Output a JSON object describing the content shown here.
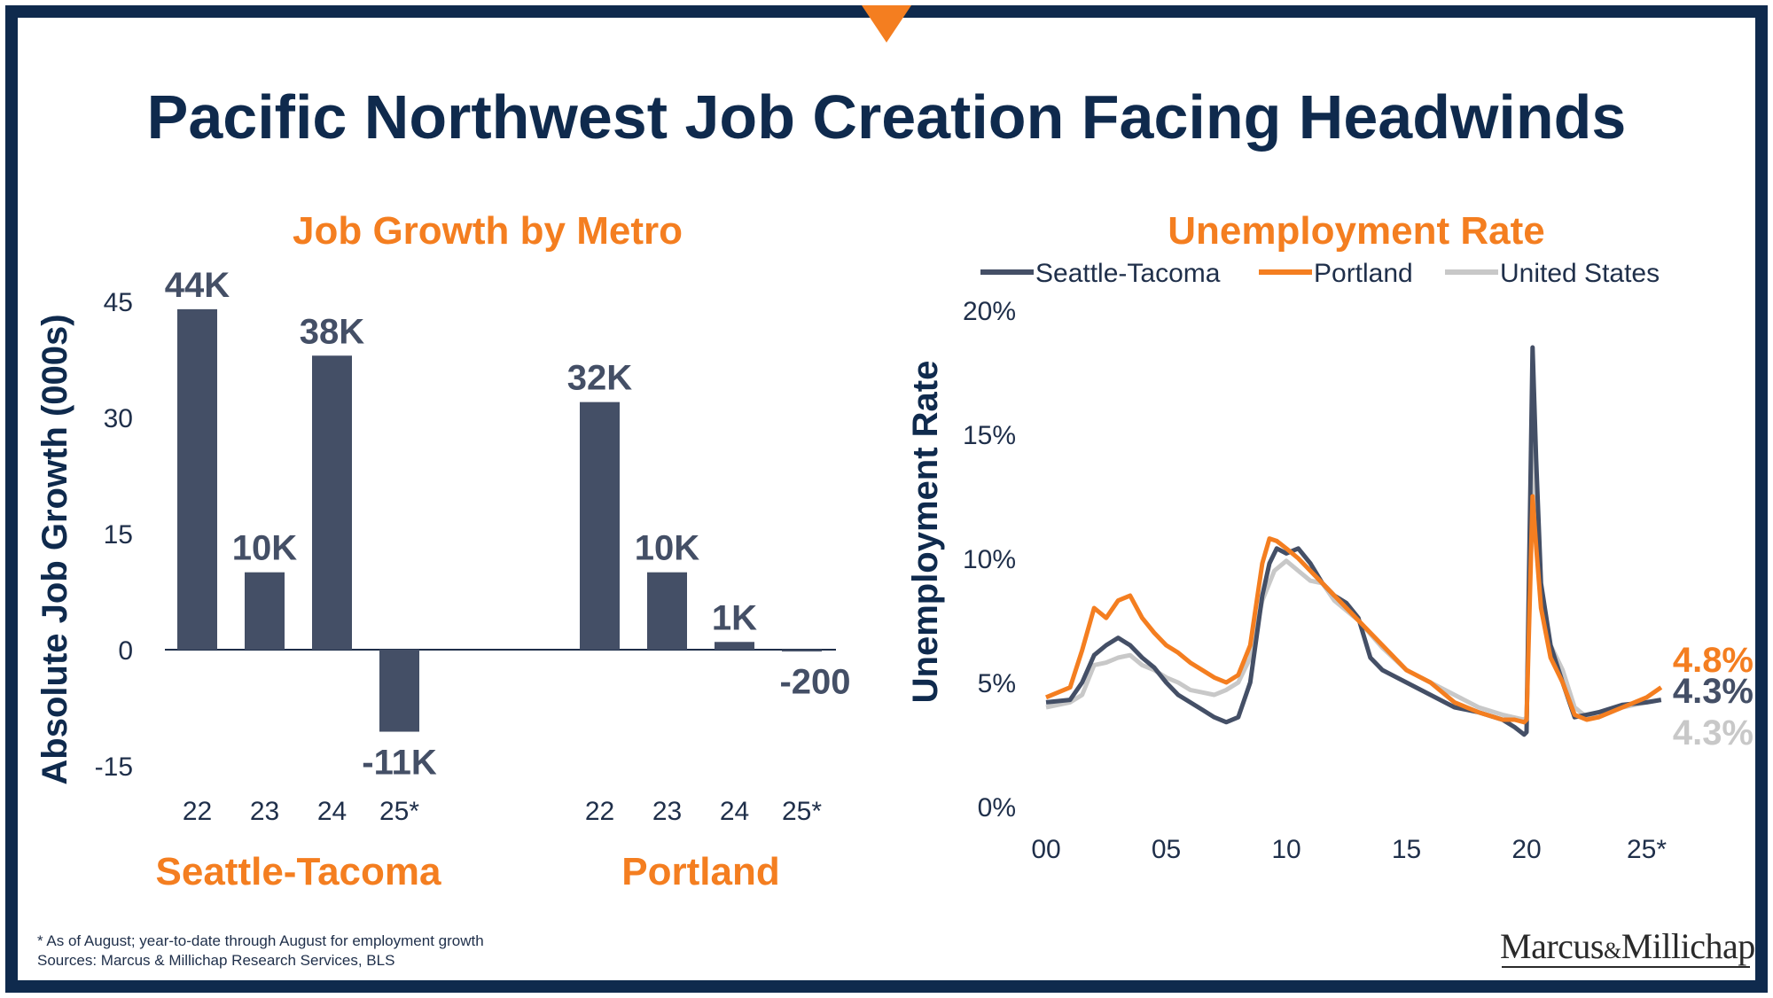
{
  "title": "Pacific Northwest Job Creation Facing Headwinds",
  "footnote": {
    "line1": "* As of August; year-to-date through August for employment growth",
    "line2": "Sources: Marcus & Millichap Research Services, BLS"
  },
  "logo": {
    "left": "Marcus",
    "amp": "&",
    "right": "Millichap"
  },
  "colors": {
    "navy": "#0f2a4d",
    "orange": "#f47e20",
    "bar": "#444f66",
    "gray": "#c8c8c8",
    "dark_line": "#444f66"
  },
  "chart_data": [
    {
      "type": "bar",
      "title": "Job Growth by Metro",
      "ylabel": "Absolute Job Growth (000s)",
      "ylim": [
        -15,
        45
      ],
      "yticks": [
        "45",
        "30",
        "15",
        "0",
        "-15"
      ],
      "groups": [
        {
          "name": "Seattle-Tacoma",
          "categories": [
            "22",
            "23",
            "24",
            "25*"
          ],
          "values": [
            44,
            10,
            38,
            -10.6
          ],
          "labels": [
            "44K",
            "10K",
            "38K",
            "-11K"
          ]
        },
        {
          "name": "Portland",
          "categories": [
            "22",
            "23",
            "24",
            "25*"
          ],
          "values": [
            32,
            10,
            1,
            -0.2
          ],
          "labels": [
            "32K",
            "10K",
            "1K",
            "-200"
          ]
        }
      ]
    },
    {
      "type": "line",
      "title": "Unemployment Rate",
      "ylabel": "Unemployment Rate",
      "ylim": [
        0,
        20
      ],
      "yticks": [
        "20%",
        "15%",
        "10%",
        "5%",
        "0%"
      ],
      "xlim": [
        2000,
        2025.7
      ],
      "xticks": [
        "00",
        "05",
        "10",
        "15",
        "20",
        "25*"
      ],
      "series": [
        {
          "name": "Seattle-Tacoma",
          "color": "#444f66",
          "end_label": "4.3%",
          "x": [
            2000,
            2001,
            2001.5,
            2002,
            2002.5,
            2003,
            2003.5,
            2004,
            2004.5,
            2005,
            2005.5,
            2006,
            2006.5,
            2007,
            2007.5,
            2008,
            2008.5,
            2009,
            2009.3,
            2009.6,
            2010,
            2010.5,
            2011,
            2011.5,
            2012,
            2012.5,
            2013,
            2013.5,
            2014,
            2015,
            2016,
            2017,
            2018,
            2019,
            2019.5,
            2019.9,
            2020.0,
            2020.25,
            2020.4,
            2020.6,
            2021,
            2021.5,
            2022,
            2022.5,
            2023,
            2024,
            2025,
            2025.6
          ],
          "y": [
            4.2,
            4.3,
            5.0,
            6.1,
            6.5,
            6.8,
            6.5,
            6.0,
            5.6,
            5.0,
            4.5,
            4.2,
            3.9,
            3.6,
            3.4,
            3.6,
            5.0,
            8.5,
            9.8,
            10.4,
            10.2,
            10.4,
            9.8,
            9.0,
            8.5,
            8.2,
            7.6,
            6.0,
            5.5,
            5.0,
            4.5,
            4.0,
            3.8,
            3.5,
            3.2,
            2.9,
            3.0,
            18.5,
            14.0,
            9.0,
            6.5,
            5.0,
            3.6,
            3.7,
            3.8,
            4.1,
            4.2,
            4.3
          ]
        },
        {
          "name": "Portland",
          "color": "#f47e20",
          "end_label": "4.8%",
          "x": [
            2000,
            2001,
            2001.5,
            2002,
            2002.5,
            2003,
            2003.5,
            2004,
            2004.5,
            2005,
            2005.5,
            2006,
            2006.5,
            2007,
            2007.5,
            2008,
            2008.5,
            2009,
            2009.3,
            2009.6,
            2010,
            2010.5,
            2011,
            2011.5,
            2012,
            2012.5,
            2013,
            2013.5,
            2014,
            2015,
            2016,
            2017,
            2018,
            2019,
            2019.5,
            2019.9,
            2020.0,
            2020.25,
            2020.4,
            2020.6,
            2021,
            2021.5,
            2022,
            2022.5,
            2023,
            2024,
            2025,
            2025.6
          ],
          "y": [
            4.4,
            4.8,
            6.3,
            8.0,
            7.6,
            8.3,
            8.5,
            7.6,
            7.0,
            6.5,
            6.2,
            5.8,
            5.5,
            5.2,
            5.0,
            5.3,
            6.5,
            9.8,
            10.8,
            10.7,
            10.4,
            10.0,
            9.5,
            9.0,
            8.5,
            8.0,
            7.5,
            7.0,
            6.5,
            5.5,
            5.0,
            4.2,
            3.8,
            3.5,
            3.5,
            3.4,
            3.5,
            12.5,
            10.5,
            8.0,
            6.0,
            5.0,
            3.7,
            3.5,
            3.6,
            4.0,
            4.4,
            4.8
          ]
        },
        {
          "name": "United States",
          "color": "#c8c8c8",
          "end_label": "4.3%",
          "x": [
            2000,
            2001,
            2001.5,
            2002,
            2002.5,
            2003,
            2003.5,
            2004,
            2004.5,
            2005,
            2005.5,
            2006,
            2006.5,
            2007,
            2007.5,
            2008,
            2008.5,
            2009,
            2009.5,
            2010,
            2010.5,
            2011,
            2011.5,
            2012,
            2013,
            2014,
            2015,
            2016,
            2017,
            2018,
            2019,
            2019.9,
            2020.0,
            2020.25,
            2020.4,
            2020.6,
            2021,
            2021.5,
            2022,
            2022.5,
            2023,
            2024,
            2025,
            2025.6
          ],
          "y": [
            4.0,
            4.2,
            4.5,
            5.7,
            5.8,
            6.0,
            6.1,
            5.7,
            5.5,
            5.2,
            5.0,
            4.7,
            4.6,
            4.5,
            4.7,
            5.0,
            6.0,
            8.3,
            9.5,
            9.9,
            9.5,
            9.1,
            9.0,
            8.3,
            7.5,
            6.4,
            5.5,
            5.0,
            4.5,
            4.0,
            3.7,
            3.5,
            3.6,
            14.8,
            11.5,
            8.5,
            6.5,
            5.5,
            4.0,
            3.6,
            3.6,
            4.0,
            4.2,
            4.3
          ]
        }
      ]
    }
  ]
}
